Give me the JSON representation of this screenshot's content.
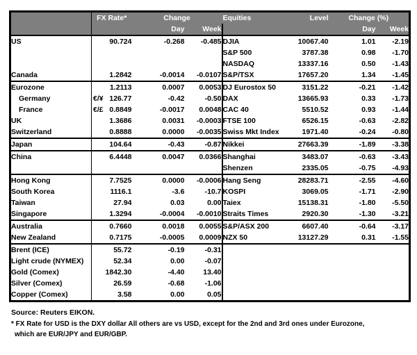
{
  "colors": {
    "header_bg": "#7f7f7f",
    "header_text": "#ffffff",
    "border": "#000000",
    "text": "#000000",
    "page_bg": "#ffffff"
  },
  "header": {
    "fx_rate": "FX Rate*",
    "change": "Change",
    "day": "Day",
    "week": "Week",
    "equities": "Equities",
    "level": "Level",
    "change_pct": "Change (%)"
  },
  "rows": [
    {
      "section": true,
      "left": {
        "label": "US",
        "pair": "",
        "rate": "90.724",
        "day": "-0.268",
        "week": "-0.485"
      },
      "right": {
        "label": "DJIA",
        "level": "10067.40",
        "day": "1.01",
        "week": "-2.19"
      }
    },
    {
      "left": {
        "label": "",
        "pair": "",
        "rate": "",
        "day": "",
        "week": ""
      },
      "right": {
        "label": "S&P 500",
        "level": "3787.38",
        "day": "0.98",
        "week": "-1.70"
      }
    },
    {
      "left": {
        "label": "",
        "pair": "",
        "rate": "",
        "day": "",
        "week": ""
      },
      "right": {
        "label": "NASDAQ",
        "level": "13337.16",
        "day": "0.50",
        "week": "-1.43"
      }
    },
    {
      "left": {
        "label": "Canada",
        "pair": "",
        "rate": "1.2842",
        "day": "-0.0014",
        "week": "-0.0107"
      },
      "right": {
        "label": "S&P/TSX",
        "level": "17657.20",
        "day": "1.34",
        "week": "-1.45"
      }
    },
    {
      "section": true,
      "left": {
        "label": "Eurozone",
        "pair": "",
        "rate": "1.2113",
        "day": "0.0007",
        "week": "0.0053"
      },
      "right": {
        "label": "DJ Eurostox 50",
        "level": "3151.22",
        "day": "-0.21",
        "week": "-1.42"
      }
    },
    {
      "indent": true,
      "left": {
        "label": "Germany",
        "pair": "€/¥",
        "rate": "126.77",
        "day": "-0.42",
        "week": "-0.50"
      },
      "right": {
        "label": "DAX",
        "level": "13665.93",
        "day": "0.33",
        "week": "-1.73"
      }
    },
    {
      "indent": true,
      "left": {
        "label": "France",
        "pair": "€/£",
        "rate": "0.8849",
        "day": "-0.0017",
        "week": "0.0048"
      },
      "right": {
        "label": "CAC 40",
        "level": "5510.52",
        "day": "0.93",
        "week": "-1.44"
      }
    },
    {
      "left": {
        "label": "UK",
        "pair": "",
        "rate": "1.3686",
        "day": "0.0031",
        "week": "-0.0003"
      },
      "right": {
        "label": "FTSE 100",
        "level": "6526.15",
        "day": "-0.63",
        "week": "-2.82"
      }
    },
    {
      "left": {
        "label": "Switzerland",
        "pair": "",
        "rate": "0.8888",
        "day": "0.0000",
        "week": "-0.0035"
      },
      "right": {
        "label": "Swiss Mkt Index",
        "level": "1971.40",
        "day": "-0.24",
        "week": "-0.80"
      }
    },
    {
      "section": true,
      "left": {
        "label": "Japan",
        "pair": "",
        "rate": "104.64",
        "day": "-0.43",
        "week": "-0.87"
      },
      "right": {
        "label": "Nikkei",
        "level": "27663.39",
        "day": "-1.89",
        "week": "-3.38"
      }
    },
    {
      "section": true,
      "left": {
        "label": "China",
        "pair": "",
        "rate": "6.4448",
        "day": "0.0047",
        "week": "0.0366"
      },
      "right": {
        "label": "Shanghai",
        "level": "3483.07",
        "day": "-0.63",
        "week": "-3.43"
      }
    },
    {
      "left": {
        "label": "",
        "pair": "",
        "rate": "",
        "day": "",
        "week": ""
      },
      "right": {
        "label": "Shenzen",
        "level": "2335.05",
        "day": "-0.75",
        "week": "-4.93"
      }
    },
    {
      "section": true,
      "left": {
        "label": "Hong Kong",
        "pair": "",
        "rate": "7.7525",
        "day": "0.0000",
        "week": "-0.0006"
      },
      "right": {
        "label": "Hang Seng",
        "level": "28283.71",
        "day": "-2.55",
        "week": "-4.60"
      }
    },
    {
      "left": {
        "label": "South Korea",
        "pair": "",
        "rate": "1116.1",
        "day": "-3.6",
        "week": "-10.7"
      },
      "right": {
        "label": "KOSPI",
        "level": "3069.05",
        "day": "-1.71",
        "week": "-2.90"
      }
    },
    {
      "left": {
        "label": "Taiwan",
        "pair": "",
        "rate": "27.94",
        "day": "0.03",
        "week": "0.00"
      },
      "right": {
        "label": "Taiex",
        "level": "15138.31",
        "day": "-1.80",
        "week": "-5.50"
      }
    },
    {
      "left": {
        "label": "Singapore",
        "pair": "",
        "rate": "1.3294",
        "day": "-0.0004",
        "week": "-0.0010"
      },
      "right": {
        "label": "Straits Times",
        "level": "2920.30",
        "day": "-1.30",
        "week": "-3.21"
      }
    },
    {
      "section": true,
      "left": {
        "label": "Australia",
        "pair": "",
        "rate": "0.7660",
        "day": "0.0018",
        "week": "0.0055"
      },
      "right": {
        "label": "S&P/ASX 200",
        "level": "6607.40",
        "day": "-0.64",
        "week": "-3.17"
      }
    },
    {
      "left": {
        "label": "New Zealand",
        "pair": "",
        "rate": "0.7175",
        "day": "-0.0005",
        "week": "0.0009"
      },
      "right": {
        "label": "NZX 50",
        "level": "13127.29",
        "day": "0.31",
        "week": "-1.55"
      }
    },
    {
      "section": true,
      "left": {
        "label": "Brent (ICE)",
        "pair": "",
        "rate": "55.72",
        "day": "-0.19",
        "week": "-0.31"
      },
      "right": null
    },
    {
      "left": {
        "label": "Light crude (NYMEX)",
        "pair": "",
        "rate": "52.34",
        "day": "0.00",
        "week": "-0.07"
      },
      "right": null
    },
    {
      "left": {
        "label": "Gold (Comex)",
        "pair": "",
        "rate": "1842.30",
        "day": "-4.40",
        "week": "13.40"
      },
      "right": null
    },
    {
      "left": {
        "label": "Silver (Comex)",
        "pair": "",
        "rate": "26.59",
        "day": "-0.68",
        "week": "-1.06"
      },
      "right": null
    },
    {
      "left": {
        "label": "Copper (Comex)",
        "pair": "",
        "rate": "3.58",
        "day": "0.00",
        "week": "0.05"
      },
      "right": null
    }
  ],
  "footer": {
    "source": "Source:  Reuters EIKON.",
    "note_line1": "* FX Rate for USD is the DXY dollar  All others are vs USD, except for the 2nd and 3rd ones under Eurozone,",
    "note_line2": "which are EUR/JPY and EUR/GBP."
  }
}
